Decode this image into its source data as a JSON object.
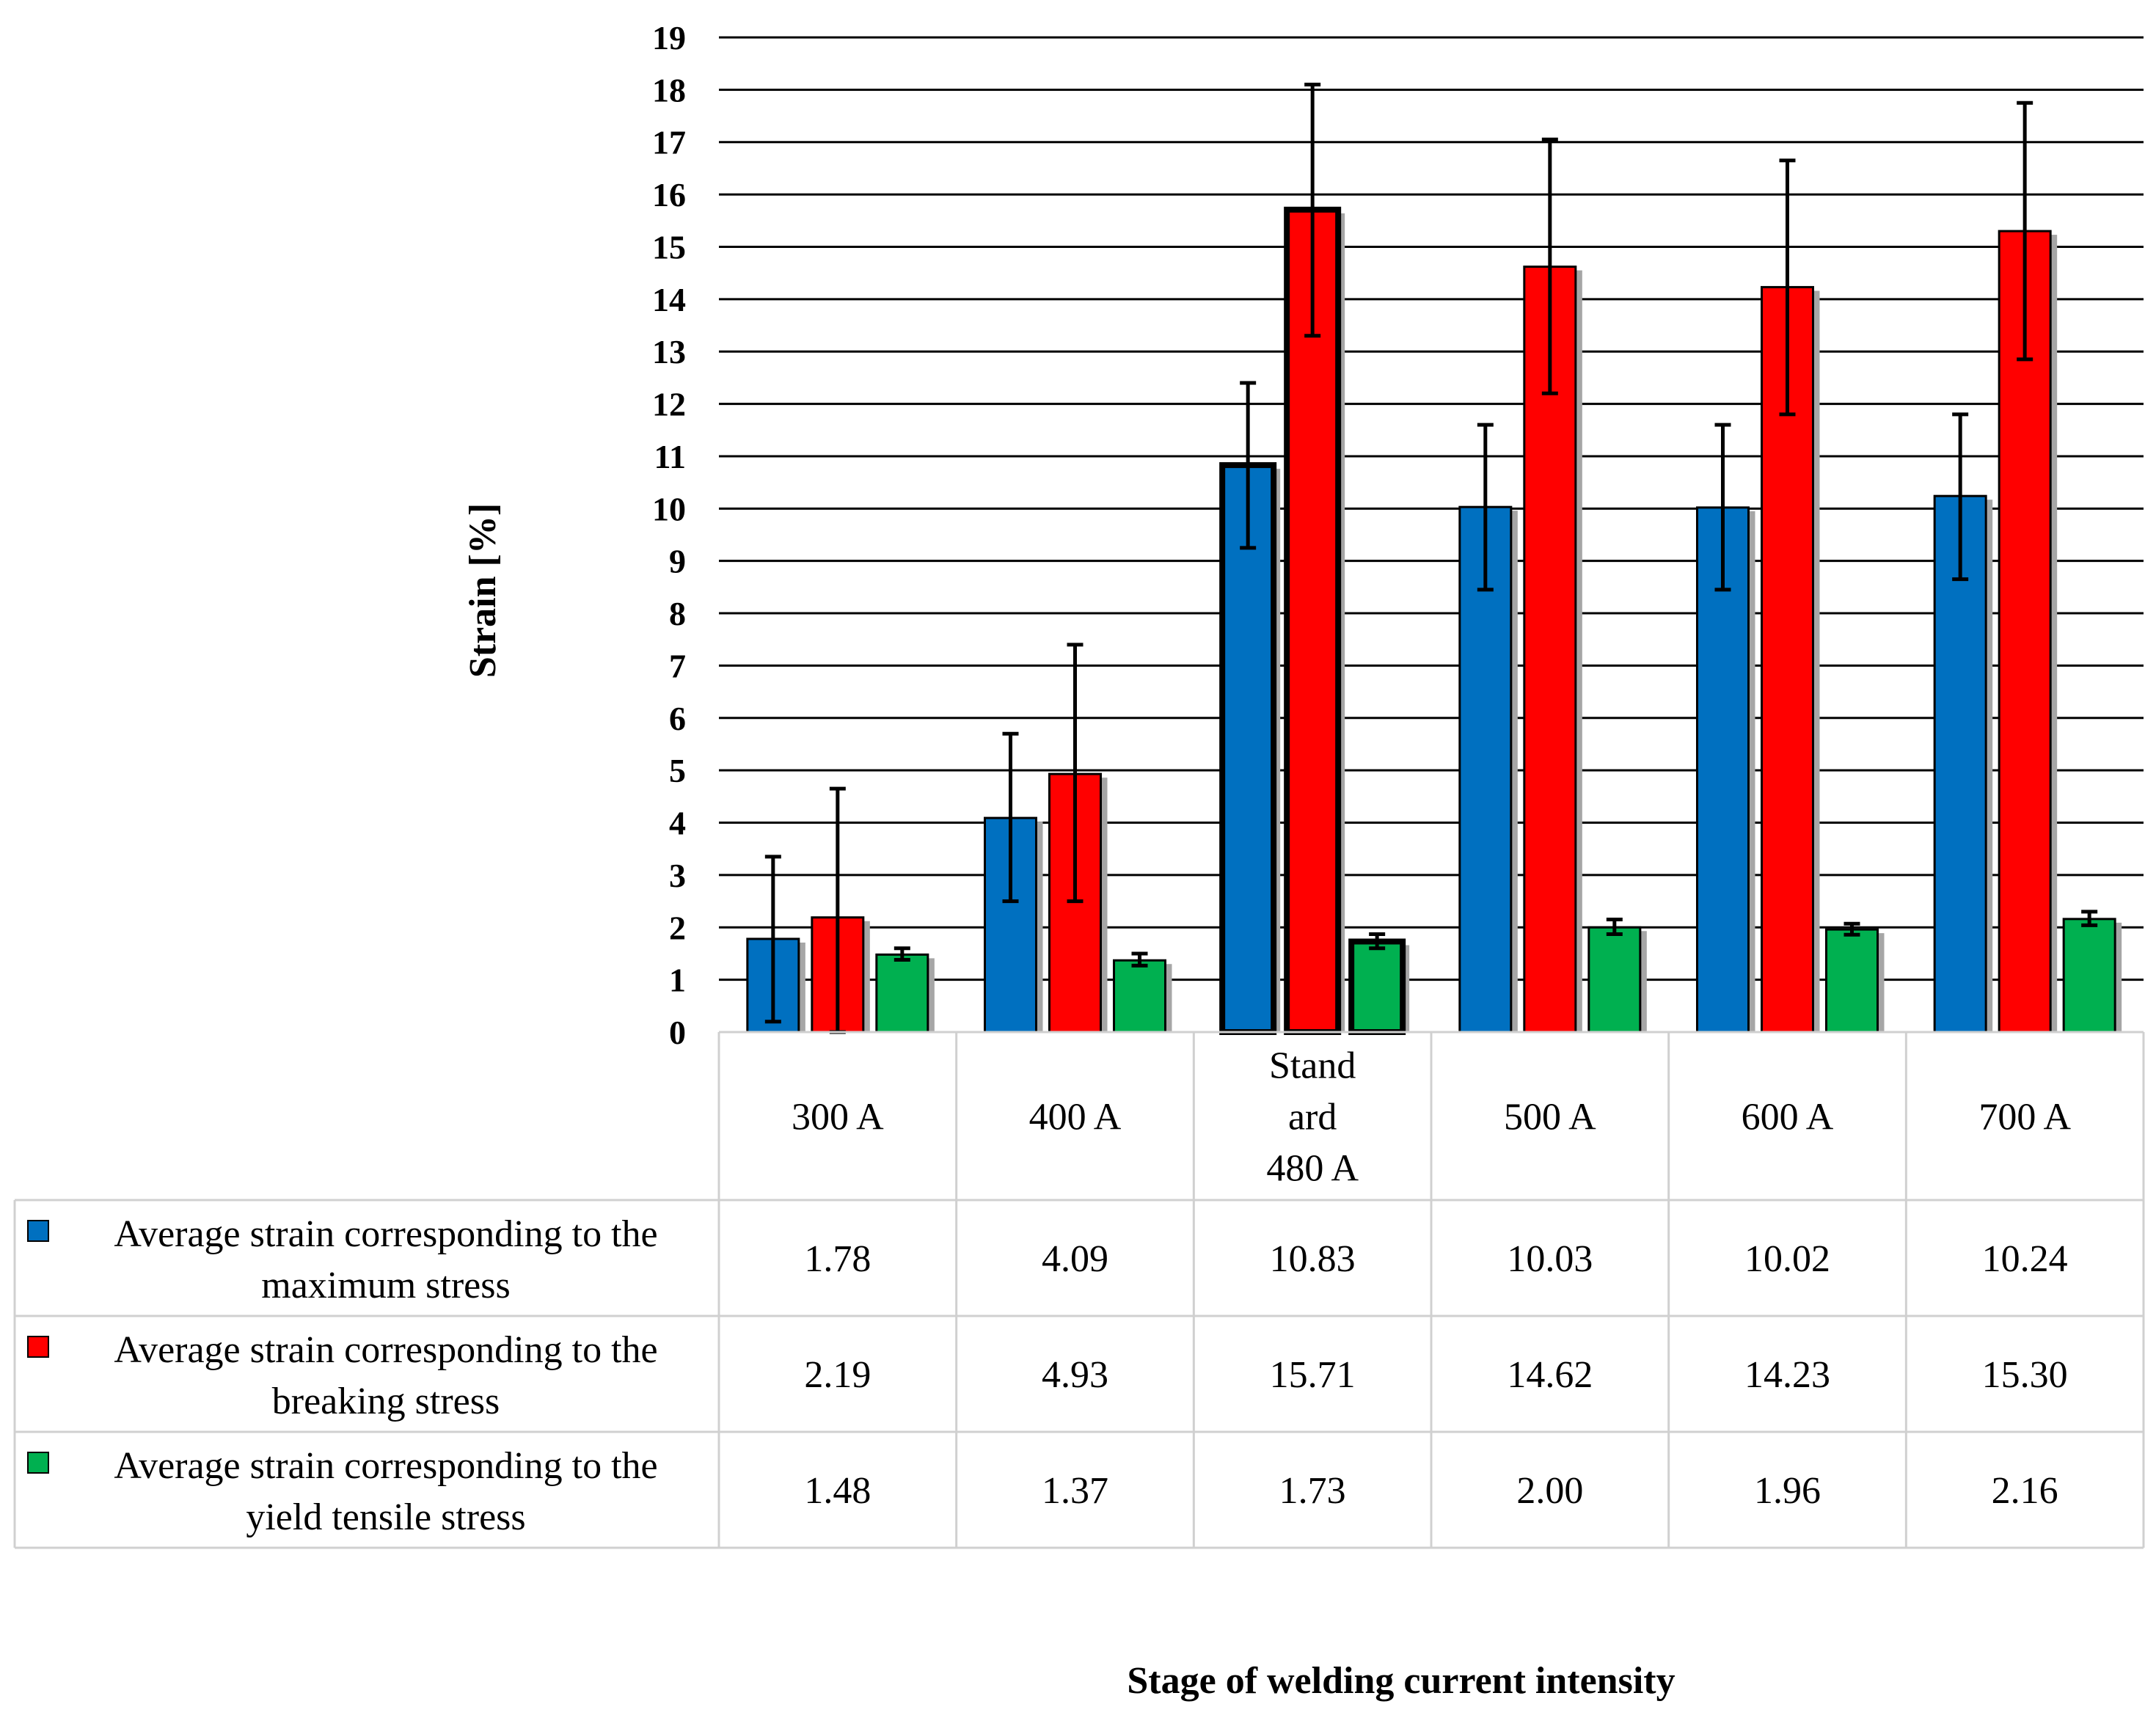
{
  "chart_data": {
    "type": "bar",
    "title": "",
    "ylabel": "Strain [%]",
    "xlabel": "Stage of welding current intensity",
    "ylim": [
      0,
      19
    ],
    "yticks": [
      0,
      1,
      2,
      3,
      4,
      5,
      6,
      7,
      8,
      9,
      10,
      11,
      12,
      13,
      14,
      15,
      16,
      17,
      18,
      19
    ],
    "grid": true,
    "legend": "data-table",
    "categories": [
      [
        "300 A"
      ],
      [
        "400 A"
      ],
      [
        "Stand",
        "ard",
        "480 A"
      ],
      [
        "500 A"
      ],
      [
        "600 A"
      ],
      [
        "700 A"
      ]
    ],
    "highlighted_category": 2,
    "series": [
      {
        "name": [
          "Average strain corresponding to the",
          "maximum stress"
        ],
        "color": "#0070c0",
        "values": [
          1.78,
          4.09,
          10.83,
          10.03,
          10.02,
          10.24
        ],
        "labels": [
          "1.78",
          "4.09",
          "10.83",
          "10.03",
          "10.02",
          "10.24"
        ],
        "err_low": [
          0.2,
          2.5,
          9.25,
          8.45,
          8.45,
          8.65
        ],
        "err_high": [
          3.35,
          5.7,
          12.4,
          11.6,
          11.6,
          11.8
        ]
      },
      {
        "name": [
          "Average strain corresponding to the",
          "breaking stress"
        ],
        "color": "#ff0000",
        "values": [
          2.19,
          4.93,
          15.71,
          14.62,
          14.23,
          15.3
        ],
        "labels": [
          "2.19",
          "4.93",
          "15.71",
          "14.62",
          "14.23",
          "15.30"
        ],
        "err_low": [
          0.0,
          2.5,
          13.3,
          12.2,
          11.8,
          12.85
        ],
        "err_high": [
          4.65,
          7.4,
          18.1,
          17.05,
          16.65,
          17.75
        ]
      },
      {
        "name": [
          "Average strain corresponding to the",
          "yield tensile stress"
        ],
        "color": "#00b050",
        "values": [
          1.48,
          1.37,
          1.73,
          2.0,
          1.96,
          2.16
        ],
        "labels": [
          "1.48",
          "1.37",
          "1.73",
          "2.00",
          "1.96",
          "2.16"
        ],
        "err_low": [
          1.38,
          1.27,
          1.6,
          1.87,
          1.86,
          2.04
        ],
        "err_high": [
          1.6,
          1.5,
          1.87,
          2.15,
          2.07,
          2.3
        ]
      }
    ]
  }
}
